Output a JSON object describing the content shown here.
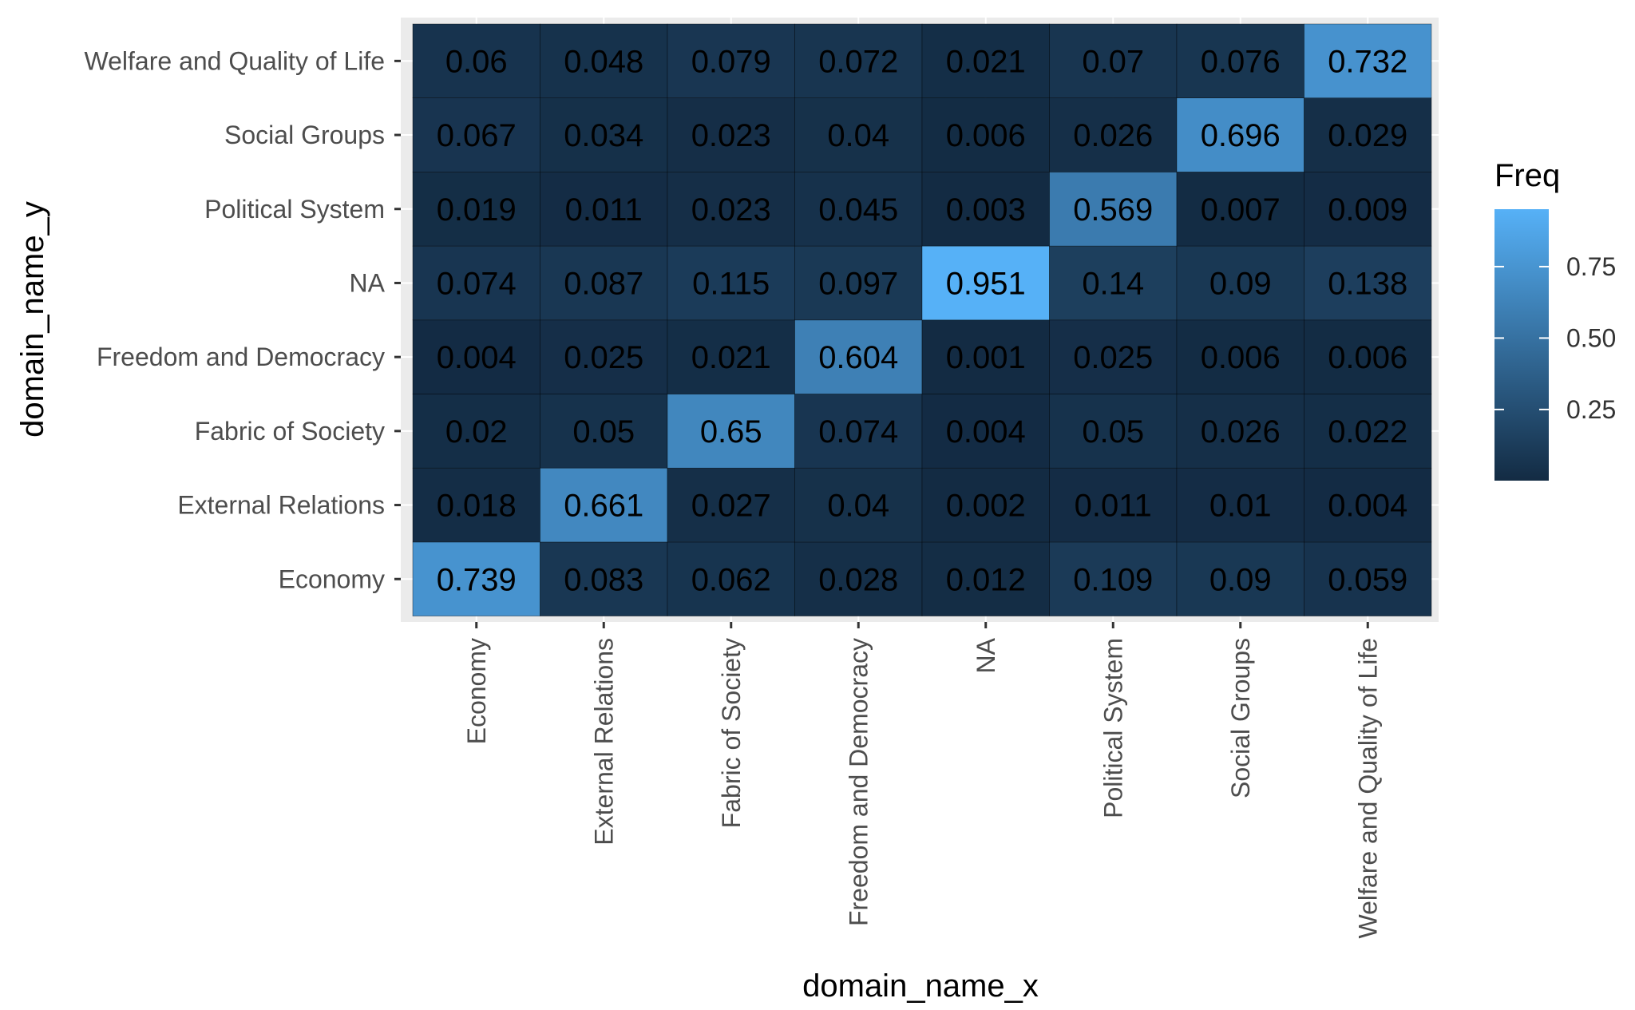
{
  "chart_data": {
    "type": "heatmap",
    "title": "",
    "xlabel": "domain_name_x",
    "ylabel": "domain_name_y",
    "x_categories": [
      "Economy",
      "External Relations",
      "Fabric of Society",
      "Freedom and Democracy",
      "NA",
      "Political System",
      "Social Groups",
      "Welfare and Quality of Life"
    ],
    "y_categories": [
      "Economy",
      "External Relations",
      "Fabric of Society",
      "Freedom and Democracy",
      "NA",
      "Political System",
      "Social Groups",
      "Welfare and Quality of Life"
    ],
    "values": [
      [
        "0.739",
        "0.083",
        "0.062",
        "0.028",
        "0.012",
        "0.109",
        "0.09",
        "0.059"
      ],
      [
        "0.018",
        "0.661",
        "0.027",
        "0.04",
        "0.002",
        "0.011",
        "0.01",
        "0.004"
      ],
      [
        "0.02",
        "0.05",
        "0.65",
        "0.074",
        "0.004",
        "0.05",
        "0.026",
        "0.022"
      ],
      [
        "0.004",
        "0.025",
        "0.021",
        "0.604",
        "0.001",
        "0.025",
        "0.006",
        "0.006"
      ],
      [
        "0.074",
        "0.087",
        "0.115",
        "0.097",
        "0.951",
        "0.14",
        "0.09",
        "0.138"
      ],
      [
        "0.019",
        "0.011",
        "0.023",
        "0.045",
        "0.003",
        "0.569",
        "0.007",
        "0.009"
      ],
      [
        "0.067",
        "0.034",
        "0.023",
        "0.04",
        "0.006",
        "0.026",
        "0.696",
        "0.029"
      ],
      [
        "0.06",
        "0.048",
        "0.079",
        "0.072",
        "0.021",
        "0.07",
        "0.076",
        "0.732"
      ]
    ],
    "legend": {
      "title": "Freq",
      "ticks": [
        "0.25",
        "0.50",
        "0.75"
      ],
      "placement": "right"
    },
    "color_range": [
      "#132B43",
      "#56B1F7"
    ],
    "value_range": [
      0.001,
      0.951
    ],
    "panel_background": "#EBEBEB",
    "grid": true
  }
}
